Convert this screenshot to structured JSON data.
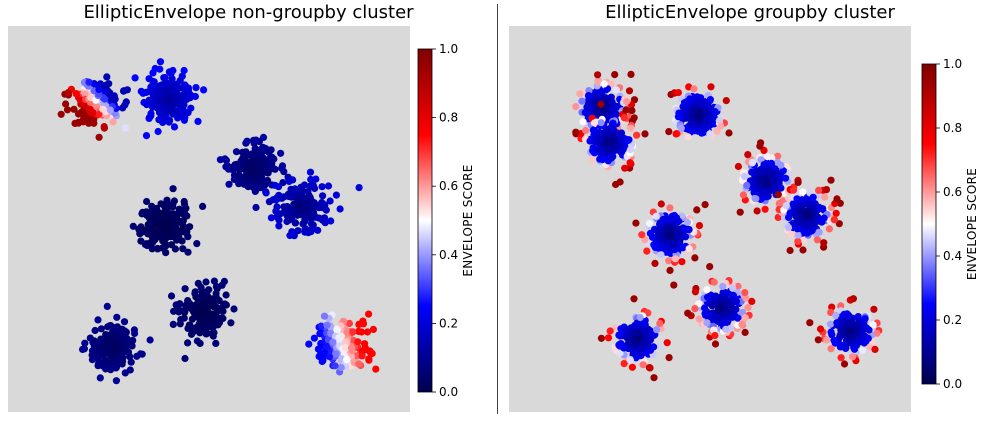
{
  "panels": [
    {
      "title": "EllipticEnvelope non-groupby cluster",
      "colorbar_label": "ENVELOPE SCORE"
    },
    {
      "title": "EllipticEnvelope groupby cluster",
      "colorbar_label": "ENVELOPE SCORE"
    }
  ],
  "colors": {
    "plot_background": "#d9d9d9",
    "colormap": "seismic",
    "colormap_stops": [
      "#00004c",
      "#0000ff",
      "#ffffff",
      "#ff0000",
      "#800000"
    ]
  },
  "chart_data": [
    {
      "type": "scatter",
      "title": "EllipticEnvelope non-groupby cluster",
      "colorbar": {
        "label": "ENVELOPE SCORE",
        "range": [
          0,
          1
        ],
        "ticks": [
          "0.0",
          "0.2",
          "0.4",
          "0.6",
          "0.8",
          "1.0"
        ]
      },
      "axes_visible": false,
      "grid": false,
      "clusters": [
        {
          "cx": 0.22,
          "cy": 0.8,
          "score_pattern": "gradient-high",
          "score_range": [
            0.15,
            0.95
          ]
        },
        {
          "cx": 0.4,
          "cy": 0.81,
          "score_pattern": "uniform",
          "score_range": [
            0.1,
            0.25
          ]
        },
        {
          "cx": 0.61,
          "cy": 0.63,
          "score_pattern": "uniform",
          "score_range": [
            0.02,
            0.12
          ]
        },
        {
          "cx": 0.73,
          "cy": 0.53,
          "score_pattern": "uniform",
          "score_range": [
            0.05,
            0.2
          ]
        },
        {
          "cx": 0.39,
          "cy": 0.48,
          "score_pattern": "uniform",
          "score_range": [
            0.0,
            0.05
          ]
        },
        {
          "cx": 0.49,
          "cy": 0.26,
          "score_pattern": "uniform",
          "score_range": [
            0.0,
            0.06
          ]
        },
        {
          "cx": 0.26,
          "cy": 0.17,
          "score_pattern": "uniform",
          "score_range": [
            0.02,
            0.1
          ]
        },
        {
          "cx": 0.83,
          "cy": 0.18,
          "score_pattern": "gradient-mid",
          "score_range": [
            0.25,
            0.75
          ]
        }
      ]
    },
    {
      "type": "scatter",
      "title": "EllipticEnvelope groupby cluster",
      "colorbar": {
        "label": "ENVELOPE SCORE",
        "range": [
          0,
          1
        ],
        "ticks": [
          "0.0",
          "0.2",
          "0.4",
          "0.6",
          "0.8",
          "1.0"
        ]
      },
      "axes_visible": false,
      "grid": false,
      "clusters": [
        {
          "cx": 0.23,
          "cy": 0.79,
          "score_pattern": "core-low-edge-high",
          "score_range": [
            0.05,
            0.95
          ]
        },
        {
          "cx": 0.25,
          "cy": 0.7,
          "score_pattern": "core-low-edge-high",
          "score_range": [
            0.05,
            0.95
          ]
        },
        {
          "cx": 0.47,
          "cy": 0.77,
          "score_pattern": "core-low-edge-high",
          "score_range": [
            0.05,
            0.95
          ]
        },
        {
          "cx": 0.64,
          "cy": 0.6,
          "score_pattern": "core-low-edge-high",
          "score_range": [
            0.05,
            0.95
          ]
        },
        {
          "cx": 0.74,
          "cy": 0.51,
          "score_pattern": "core-low-edge-high",
          "score_range": [
            0.05,
            0.95
          ]
        },
        {
          "cx": 0.4,
          "cy": 0.46,
          "score_pattern": "core-low-edge-high",
          "score_range": [
            0.05,
            0.95
          ]
        },
        {
          "cx": 0.53,
          "cy": 0.27,
          "score_pattern": "core-low-edge-high",
          "score_range": [
            0.05,
            0.95
          ]
        },
        {
          "cx": 0.32,
          "cy": 0.19,
          "score_pattern": "core-low-edge-high",
          "score_range": [
            0.05,
            0.95
          ]
        },
        {
          "cx": 0.85,
          "cy": 0.21,
          "score_pattern": "core-low-edge-high",
          "score_range": [
            0.05,
            0.95
          ]
        }
      ]
    }
  ]
}
